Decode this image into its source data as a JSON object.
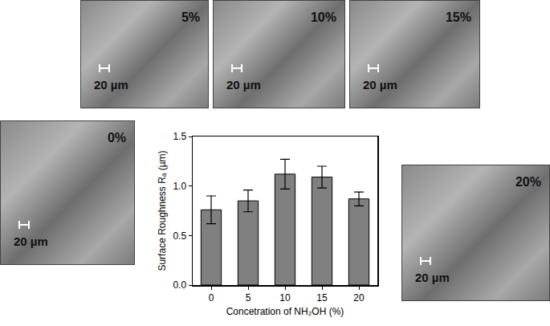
{
  "chart_data": {
    "type": "bar",
    "x_label": "Concetration of NH₂OH (%)",
    "y_label": "Surface Roughness Rₐ (µm)",
    "categories": [
      "0",
      "5",
      "10",
      "15",
      "20"
    ],
    "values": [
      0.76,
      0.85,
      1.12,
      1.09,
      0.87
    ],
    "errors": [
      0.14,
      0.11,
      0.15,
      0.11,
      0.07
    ],
    "color": "#808080",
    "ylim": [
      0,
      1.5
    ],
    "yticks": [
      {
        "value": 0,
        "label": "0.0"
      },
      {
        "value": 0.5,
        "label": "0.5"
      },
      {
        "value": 1,
        "label": "1.0"
      },
      {
        "value": 1.5,
        "label": "1.5"
      }
    ],
    "grid": false
  },
  "panels": [
    {
      "label": "5%",
      "scale_bar": "20 µm"
    },
    {
      "label": "10%",
      "scale_bar": "20 µm"
    },
    {
      "label": "15%",
      "scale_bar": "20 µm"
    },
    {
      "label": "0%",
      "scale_bar": "20 µm"
    },
    {
      "label": "20%",
      "scale_bar": "20 µm"
    }
  ]
}
